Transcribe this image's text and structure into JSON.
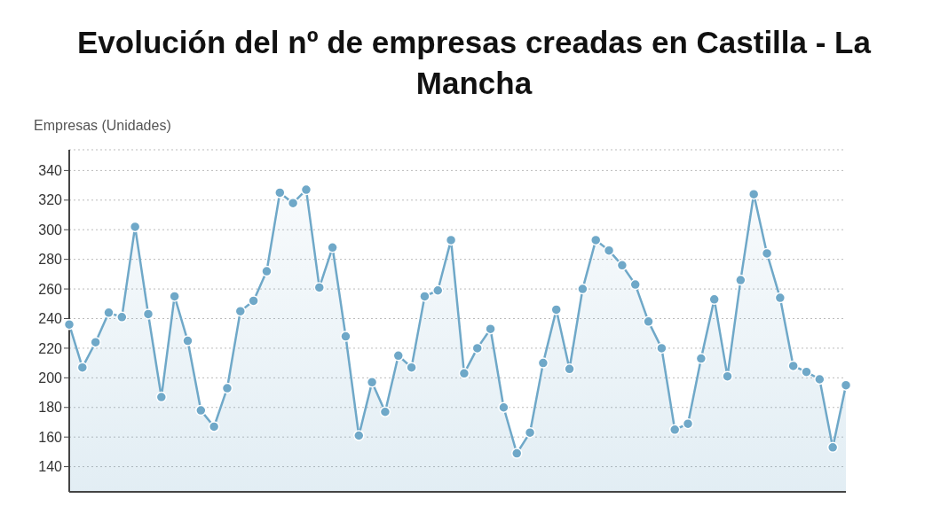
{
  "chart_data": {
    "type": "area",
    "title": "Evolución del nº de empresas creadas en Castilla - La Mancha",
    "ylabel": "Empresas (Unidades)",
    "categories": [
      null,
      null,
      null,
      null,
      null,
      null,
      null,
      null,
      null,
      null,
      null,
      null,
      null,
      null,
      null,
      null,
      null,
      null,
      null,
      null,
      null,
      null,
      null,
      null,
      null,
      null,
      null,
      null,
      null,
      null,
      null,
      null,
      null,
      null,
      null,
      null,
      null,
      null,
      null,
      null,
      null,
      null,
      null,
      null,
      null,
      null,
      null,
      null,
      null,
      null,
      null,
      null,
      null,
      null,
      null,
      null,
      null,
      null,
      null,
      null
    ],
    "series": [
      {
        "color": "#6fa8c8",
        "values": [
          236,
          207,
          224,
          244,
          241,
          302,
          243,
          187,
          255,
          225,
          178,
          167,
          193,
          245,
          252,
          272,
          325,
          318,
          327,
          261,
          288,
          228,
          161,
          197,
          177,
          215,
          207,
          255,
          259,
          293,
          203,
          220,
          233,
          180,
          149,
          163,
          210,
          246,
          206,
          260,
          293,
          286,
          276,
          263,
          238,
          220,
          165,
          169,
          213,
          253,
          201,
          266,
          324,
          284,
          254,
          208,
          204,
          199,
          153,
          195
        ]
      }
    ],
    "ylim": [
      123,
      354
    ],
    "yticks": [
      140,
      160,
      180,
      200,
      220,
      240,
      260,
      280,
      300,
      320,
      340
    ],
    "grid": "y",
    "marker": "circle",
    "line_style": "solid"
  }
}
